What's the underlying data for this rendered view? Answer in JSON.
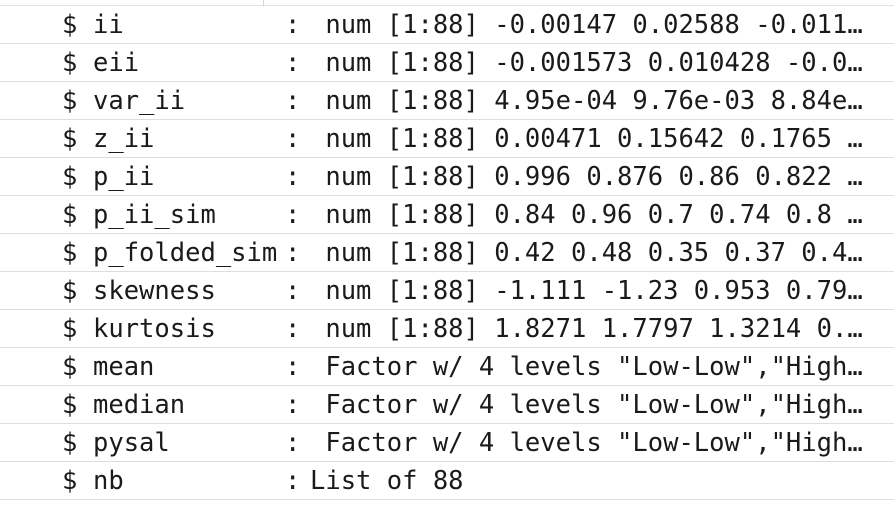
{
  "rows": [
    {
      "name": "ii",
      "sep": ":",
      "value": " num [1:88] -0.00147 0.02588 -0.011…"
    },
    {
      "name": "eii",
      "sep": ":",
      "value": " num [1:88] -0.001573 0.010428 -0.0…"
    },
    {
      "name": "var_ii",
      "sep": ":",
      "value": " num [1:88] 4.95e-04 9.76e-03 8.84e…"
    },
    {
      "name": "z_ii",
      "sep": ":",
      "value": " num [1:88] 0.00471 0.15642 0.1765 …"
    },
    {
      "name": "p_ii",
      "sep": ":",
      "value": " num [1:88] 0.996 0.876 0.86 0.822 …"
    },
    {
      "name": "p_ii_sim",
      "sep": ":",
      "value": " num [1:88] 0.84 0.96 0.7 0.74 0.8 …"
    },
    {
      "name": "p_folded_sim",
      "sep": ":",
      "value": " num [1:88] 0.42 0.48 0.35 0.37 0.4…"
    },
    {
      "name": "skewness",
      "sep": ":",
      "value": " num [1:88] -1.111 -1.23 0.953 0.79…"
    },
    {
      "name": "kurtosis",
      "sep": ":",
      "value": " num [1:88] 1.8271 1.7797 1.3214 0.…"
    },
    {
      "name": "mean",
      "sep": ":",
      "value": " Factor w/ 4 levels \"Low-Low\",\"High…"
    },
    {
      "name": "median",
      "sep": ":",
      "value": " Factor w/ 4 levels \"Low-Low\",\"High…"
    },
    {
      "name": "pysal",
      "sep": ":",
      "value": " Factor w/ 4 levels \"Low-Low\",\"High…"
    },
    {
      "name": "nb",
      "sep": ":",
      "value": "List of 88"
    }
  ]
}
